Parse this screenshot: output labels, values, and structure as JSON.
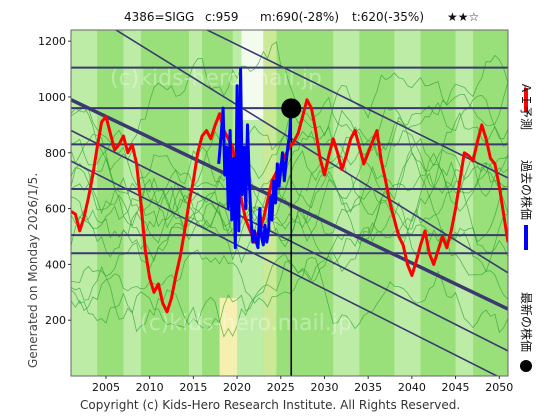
{
  "header": {
    "ticker": "4386=SIGG",
    "current": "c:959",
    "ma": "m:690(-28%)",
    "target": "t:620(-35%)",
    "rating": "★★☆"
  },
  "side_label": "Generated on Monday 2026/1/5.",
  "footer": "Copyright (c) Kids-Hero Research Institute. All Rights Reserved.",
  "watermark": "(c)kids-hero.mail.jp",
  "legend": [
    {
      "label": "ＡＩ予測",
      "color": "#ff0000"
    },
    {
      "label": "過去の株価",
      "color": "#0000ff"
    },
    {
      "label": "最新の株価",
      "color": "#000000"
    }
  ],
  "colors": {
    "band_green": "#99e07a",
    "band_light": "#d9f5c8",
    "band_yellow": "#f5f0b0",
    "ai_line": "#ff0000",
    "past_line": "#0000ff",
    "channel": "#3a3a70",
    "thin_green": "#2ea02e"
  },
  "chart_data": {
    "type": "line",
    "title": "4386=SIGG",
    "xlim": [
      2001,
      2051
    ],
    "ylim": [
      0,
      1240
    ],
    "x_ticks": [
      2005,
      2010,
      2015,
      2020,
      2025,
      2030,
      2035,
      2040,
      2045,
      2050
    ],
    "y_ticks": [
      200,
      400,
      600,
      800,
      1000,
      1200
    ],
    "horizontal_levels": [
      1105,
      960,
      830,
      670,
      505,
      440
    ],
    "channel_lines": [
      {
        "x": [
          2001,
          2051
        ],
        "y": [
          990,
          240
        ],
        "width": "thick"
      },
      {
        "x": [
          2001,
          2051
        ],
        "y": [
          1480,
          710
        ]
      },
      {
        "x": [
          2001,
          2051
        ],
        "y": [
          1340,
          370
        ]
      },
      {
        "x": [
          2001,
          2051
        ],
        "y": [
          880,
          90
        ]
      },
      {
        "x": [
          2001,
          2051
        ],
        "y": [
          770,
          -20
        ]
      }
    ],
    "latest": {
      "x": 2026.2,
      "y": 959
    },
    "series": [
      {
        "name": "ＡＩ予測",
        "color": "#ff0000",
        "x": [
          2001.0,
          2001.5,
          2002.0,
          2002.5,
          2003.0,
          2003.5,
          2004.0,
          2004.5,
          2005.0,
          2005.5,
          2006.0,
          2006.5,
          2007.0,
          2007.5,
          2008.0,
          2008.5,
          2009.0,
          2009.5,
          2010.0,
          2010.5,
          2011.0,
          2011.5,
          2012.0,
          2012.5,
          2013.0,
          2013.5,
          2014.0,
          2014.5,
          2015.0,
          2015.5,
          2016.0,
          2016.5,
          2017.0,
          2017.5,
          2018.0,
          2018.5,
          2019.0,
          2019.5,
          2020.0,
          2021.0,
          2022.0,
          2023.0,
          2024.0,
          2025.0,
          2026.0,
          2026.5,
          2027.0,
          2027.5,
          2028.0,
          2028.5,
          2029.0,
          2029.5,
          2030.0,
          2030.5,
          2031.0,
          2031.5,
          2032.0,
          2032.5,
          2033.0,
          2033.5,
          2034.0,
          2034.5,
          2035.0,
          2035.5,
          2036.0,
          2036.5,
          2037.0,
          2037.5,
          2038.0,
          2038.5,
          2039.0,
          2039.5,
          2040.0,
          2040.5,
          2041.0,
          2041.5,
          2042.0,
          2042.5,
          2043.0,
          2043.5,
          2044.0,
          2044.5,
          2045.0,
          2045.5,
          2046.0,
          2046.5,
          2047.0,
          2047.5,
          2048.0,
          2048.5,
          2049.0,
          2049.5,
          2050.0,
          2050.5,
          2051.0
        ],
        "values": [
          590,
          580,
          520,
          570,
          640,
          720,
          820,
          910,
          930,
          870,
          810,
          830,
          860,
          800,
          830,
          760,
          620,
          450,
          350,
          300,
          330,
          260,
          230,
          280,
          360,
          430,
          520,
          620,
          700,
          800,
          860,
          880,
          850,
          900,
          940,
          880,
          850,
          820,
          700,
          560,
          480,
          560,
          700,
          760,
          820,
          840,
          870,
          930,
          990,
          960,
          880,
          780,
          720,
          790,
          850,
          800,
          740,
          790,
          850,
          880,
          820,
          760,
          800,
          840,
          880,
          770,
          700,
          620,
          560,
          500,
          470,
          400,
          360,
          410,
          470,
          520,
          440,
          400,
          450,
          500,
          460,
          520,
          600,
          700,
          800,
          790,
          770,
          840,
          900,
          850,
          780,
          760,
          680,
          580,
          480
        ]
      },
      {
        "name": "過去の株価",
        "color": "#0000ff",
        "x": [
          2017.9,
          2018.2,
          2018.4,
          2018.6,
          2018.8,
          2019.0,
          2019.2,
          2019.4,
          2019.6,
          2019.8,
          2020.0,
          2020.2,
          2020.4,
          2020.6,
          2020.8,
          2021.0,
          2021.2,
          2021.4,
          2021.6,
          2021.8,
          2022.0,
          2022.2,
          2022.4,
          2022.6,
          2022.8,
          2023.0,
          2023.2,
          2023.4,
          2023.6,
          2023.8,
          2024.0,
          2024.2,
          2024.4,
          2024.6,
          2024.8,
          2025.0,
          2025.2,
          2025.4,
          2025.6,
          2025.8,
          2026.0,
          2026.2
        ],
        "values": [
          760,
          870,
          960,
          720,
          820,
          600,
          880,
          560,
          780,
          460,
          1040,
          520,
          1100,
          650,
          820,
          600,
          900,
          700,
          560,
          480,
          520,
          480,
          460,
          600,
          500,
          470,
          540,
          480,
          520,
          640,
          560,
          700,
          620,
          760,
          680,
          740,
          800,
          700,
          760,
          820,
          860,
          959
        ]
      }
    ]
  }
}
